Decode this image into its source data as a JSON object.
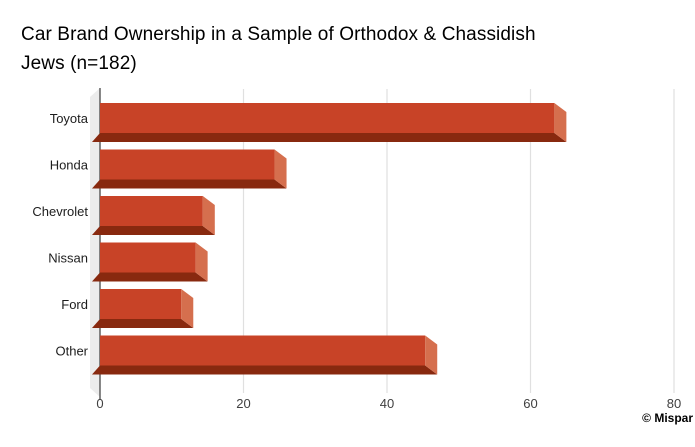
{
  "header": {
    "title_line1": "Car Brand Ownership in a Sample of Orthodox & Chassidish",
    "title_line2": "Jews (n=182)"
  },
  "attribution": "© Mispar",
  "colors": {
    "bar_front": "#c84327",
    "bar_bottom": "#88290f",
    "bar_cap": "#d56f4e",
    "wall": "#ececec",
    "gridline": "#e0e0e0",
    "baseline": "#3a3a3a",
    "title_text": "#000000",
    "tick_text": "#404040",
    "category_text": "#1d1d1d"
  },
  "chart_data": {
    "type": "bar",
    "orientation": "horizontal",
    "style": "3d",
    "title": "Car Brand Ownership in a Sample of Orthodox & Chassidish Jews (n=182)",
    "sample_size": 182,
    "categories": [
      "Toyota",
      "Honda",
      "Chevrolet",
      "Nissan",
      "Ford",
      "Other"
    ],
    "values": [
      65,
      26,
      16,
      15,
      13,
      47
    ],
    "xlabel": "",
    "ylabel": "",
    "xlim": [
      0,
      80
    ],
    "xticks": [
      0,
      20,
      40,
      60,
      80
    ],
    "grid": true,
    "legend": "none"
  }
}
